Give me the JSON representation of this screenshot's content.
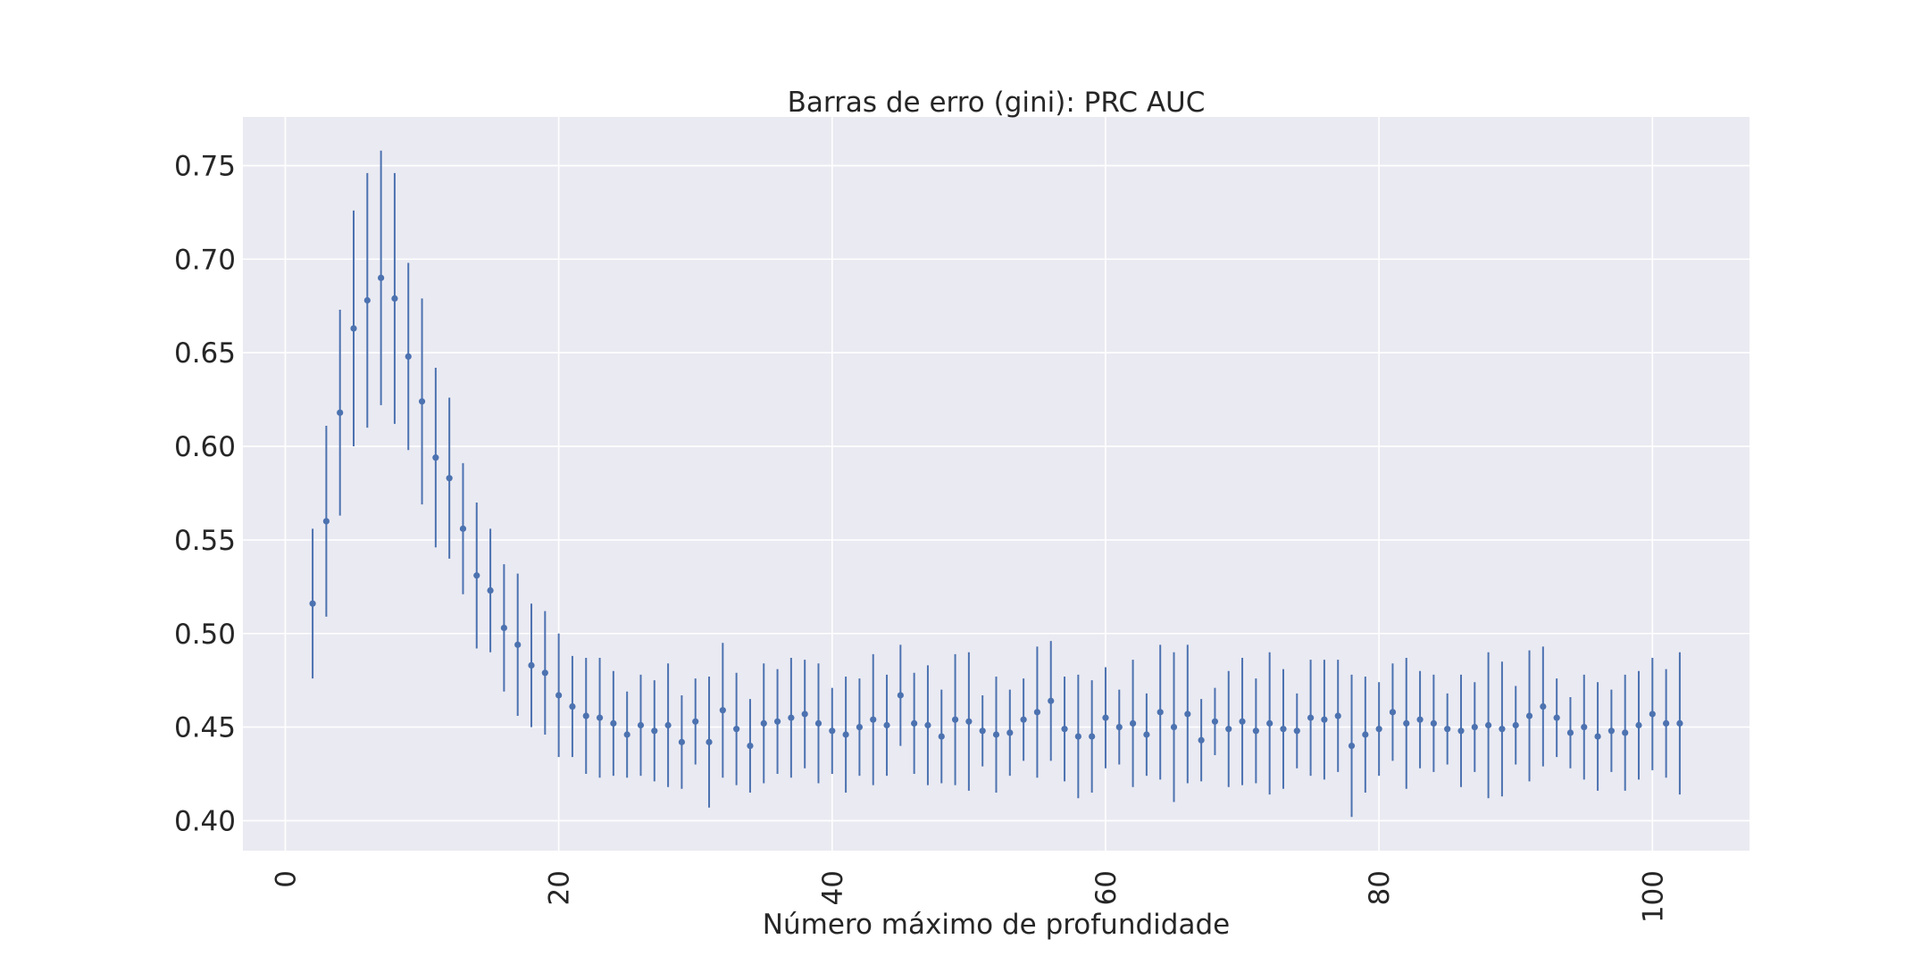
{
  "chart_data": {
    "type": "scatter",
    "style": "errorbar",
    "title": "Barras de erro (gini): PRC AUC",
    "xlabel": "Número máximo de profundidade",
    "ylabel": "",
    "xlim": [
      -3.1,
      107.1
    ],
    "ylim": [
      0.384,
      0.776
    ],
    "xticks": [
      0,
      20,
      40,
      60,
      80,
      100
    ],
    "yticks": [
      0.4,
      0.45,
      0.5,
      0.55,
      0.6,
      0.65,
      0.7,
      0.75
    ],
    "xtick_labels": [
      "0",
      "20",
      "40",
      "60",
      "80",
      "100"
    ],
    "ytick_labels": [
      "0.40",
      "0.45",
      "0.50",
      "0.55",
      "0.60",
      "0.65",
      "0.70",
      "0.75"
    ],
    "grid": true,
    "legend": "none",
    "colors": {
      "background": "#eaeaf2",
      "grid": "#ffffff",
      "series": "#4c72b0"
    },
    "x": [
      2,
      3,
      4,
      5,
      6,
      7,
      8,
      9,
      10,
      11,
      12,
      13,
      14,
      15,
      16,
      17,
      18,
      19,
      20,
      21,
      22,
      23,
      24,
      25,
      26,
      27,
      28,
      29,
      30,
      31,
      32,
      33,
      34,
      35,
      36,
      37,
      38,
      39,
      40,
      41,
      42,
      43,
      44,
      45,
      46,
      47,
      48,
      49,
      50,
      51,
      52,
      53,
      54,
      55,
      56,
      57,
      58,
      59,
      60,
      61,
      62,
      63,
      64,
      65,
      66,
      67,
      68,
      69,
      70,
      71,
      72,
      73,
      74,
      75,
      76,
      77,
      78,
      79,
      80,
      81,
      82,
      83,
      84,
      85,
      86,
      87,
      88,
      89,
      90,
      91,
      92,
      93,
      94,
      95,
      96,
      97,
      98,
      99,
      100,
      101,
      102
    ],
    "y": [
      0.516,
      0.56,
      0.618,
      0.663,
      0.678,
      0.69,
      0.679,
      0.648,
      0.624,
      0.594,
      0.583,
      0.556,
      0.531,
      0.523,
      0.503,
      0.494,
      0.483,
      0.479,
      0.467,
      0.461,
      0.456,
      0.455,
      0.452,
      0.446,
      0.451,
      0.448,
      0.451,
      0.442,
      0.453,
      0.442,
      0.459,
      0.449,
      0.44,
      0.452,
      0.453,
      0.455,
      0.457,
      0.452,
      0.448,
      0.446,
      0.45,
      0.454,
      0.451,
      0.467,
      0.452,
      0.451,
      0.445,
      0.454,
      0.453,
      0.448,
      0.446,
      0.447,
      0.454,
      0.458,
      0.464,
      0.449,
      0.445,
      0.445,
      0.455,
      0.45,
      0.452,
      0.446,
      0.458,
      0.45,
      0.457,
      0.443,
      0.453,
      0.449,
      0.453,
      0.448,
      0.452,
      0.449,
      0.448,
      0.455,
      0.454,
      0.456,
      0.44,
      0.446,
      0.449,
      0.458,
      0.452,
      0.454,
      0.452,
      0.449,
      0.448,
      0.45,
      0.451,
      0.449,
      0.451,
      0.456,
      0.461,
      0.455,
      0.447,
      0.45,
      0.445,
      0.448,
      0.447,
      0.451,
      0.457,
      0.452,
      0.452
    ],
    "err": [
      0.04,
      0.051,
      0.055,
      0.063,
      0.068,
      0.068,
      0.067,
      0.05,
      0.055,
      0.048,
      0.043,
      0.035,
      0.039,
      0.033,
      0.034,
      0.038,
      0.033,
      0.033,
      0.033,
      0.027,
      0.031,
      0.032,
      0.028,
      0.023,
      0.027,
      0.027,
      0.033,
      0.025,
      0.023,
      0.035,
      0.036,
      0.03,
      0.025,
      0.032,
      0.028,
      0.032,
      0.029,
      0.032,
      0.023,
      0.031,
      0.026,
      0.035,
      0.027,
      0.027,
      0.027,
      0.032,
      0.025,
      0.035,
      0.037,
      0.019,
      0.031,
      0.023,
      0.022,
      0.035,
      0.032,
      0.028,
      0.033,
      0.03,
      0.027,
      0.02,
      0.034,
      0.022,
      0.036,
      0.04,
      0.037,
      0.022,
      0.018,
      0.031,
      0.034,
      0.028,
      0.038,
      0.032,
      0.02,
      0.031,
      0.032,
      0.03,
      0.038,
      0.031,
      0.025,
      0.026,
      0.035,
      0.026,
      0.026,
      0.019,
      0.03,
      0.024,
      0.039,
      0.036,
      0.021,
      0.035,
      0.032,
      0.021,
      0.019,
      0.028,
      0.029,
      0.022,
      0.031,
      0.029,
      0.03,
      0.029,
      0.038
    ]
  }
}
